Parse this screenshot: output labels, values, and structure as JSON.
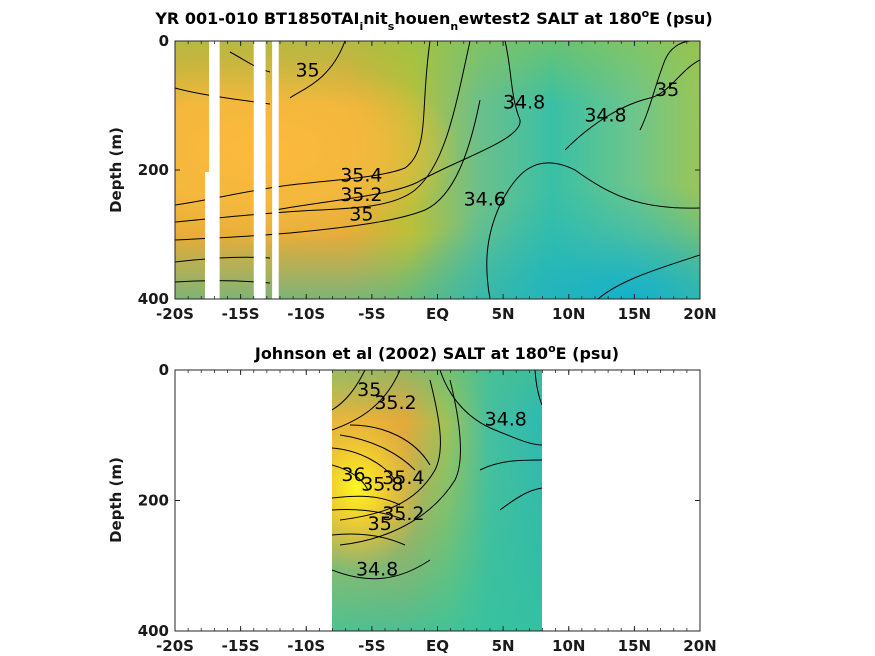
{
  "chart_data": [
    {
      "type": "contour",
      "title_main": "YR 001-010 BT1850TAI",
      "title_sub1": "i",
      "title_mid1": "nit",
      "title_sub2": "s",
      "title_mid2": "houen",
      "title_sub3": "n",
      "title_mid3": "ewtest2 SALT at 180",
      "title_sup": "o",
      "title_end": "E (psu)",
      "ylabel": "Depth (m)",
      "x_ticks": [
        "-20S",
        "-15S",
        "-10S",
        "-5S",
        "EQ",
        "5N",
        "10N",
        "15N",
        "20N"
      ],
      "x_tick_values": [
        -20,
        -15,
        -10,
        -5,
        0,
        5,
        10,
        15,
        20
      ],
      "y_ticks": [
        "0",
        "200",
        "400"
      ],
      "y_tick_values": [
        0,
        200,
        400
      ],
      "xlim": [
        -20,
        20
      ],
      "ylim": [
        0,
        400
      ],
      "missing_columns": [
        [
          -17.4,
          -16.6
        ],
        [
          -14.0,
          -13.1
        ],
        [
          -12.6,
          -12.1
        ]
      ],
      "contour_levels": [
        34.6,
        34.8,
        35,
        35.2,
        35.4
      ],
      "contour_labels": [
        {
          "text": "35",
          "x": -9.9,
          "y": 55
        },
        {
          "text": "34.8",
          "x": 6.6,
          "y": 105
        },
        {
          "text": "34.8",
          "x": 12.8,
          "y": 125
        },
        {
          "text": "35",
          "x": 17.5,
          "y": 85
        },
        {
          "text": "35.4",
          "x": -5.8,
          "y": 218
        },
        {
          "text": "35.2",
          "x": -5.8,
          "y": 248
        },
        {
          "text": "35",
          "x": -5.8,
          "y": 278
        },
        {
          "text": "34.6",
          "x": 3.6,
          "y": 255
        }
      ]
    },
    {
      "type": "contour",
      "title_main": "Johnson et al (2002) SALT at 180",
      "title_sup": "o",
      "title_end": "E (psu)",
      "ylabel": "Depth (m)",
      "x_ticks": [
        "-20S",
        "-15S",
        "-10S",
        "-5S",
        "EQ",
        "5N",
        "10N",
        "15N",
        "20N"
      ],
      "x_tick_values": [
        -20,
        -15,
        -10,
        -5,
        0,
        5,
        10,
        15,
        20
      ],
      "y_ticks": [
        "0",
        "200",
        "400"
      ],
      "y_tick_values": [
        0,
        200,
        400
      ],
      "xlim": [
        -20,
        20
      ],
      "ylim": [
        0,
        400
      ],
      "data_extent_x": [
        -8,
        8
      ],
      "contour_levels": [
        34.8,
        35,
        35.2,
        35.4,
        35.6,
        35.8,
        36
      ],
      "contour_labels": [
        {
          "text": "35",
          "x": -5.2,
          "y": 40
        },
        {
          "text": "35.2",
          "x": -3.2,
          "y": 60
        },
        {
          "text": "34.8",
          "x": 5.2,
          "y": 85
        },
        {
          "text": "36",
          "x": -6.4,
          "y": 170
        },
        {
          "text": "35.8",
          "x": -4.2,
          "y": 185
        },
        {
          "text": "35.4",
          "x": -2.6,
          "y": 175
        },
        {
          "text": "35.2",
          "x": -2.6,
          "y": 230
        },
        {
          "text": "35",
          "x": -4.4,
          "y": 245
        },
        {
          "text": "34.8",
          "x": -4.6,
          "y": 315
        }
      ]
    }
  ]
}
